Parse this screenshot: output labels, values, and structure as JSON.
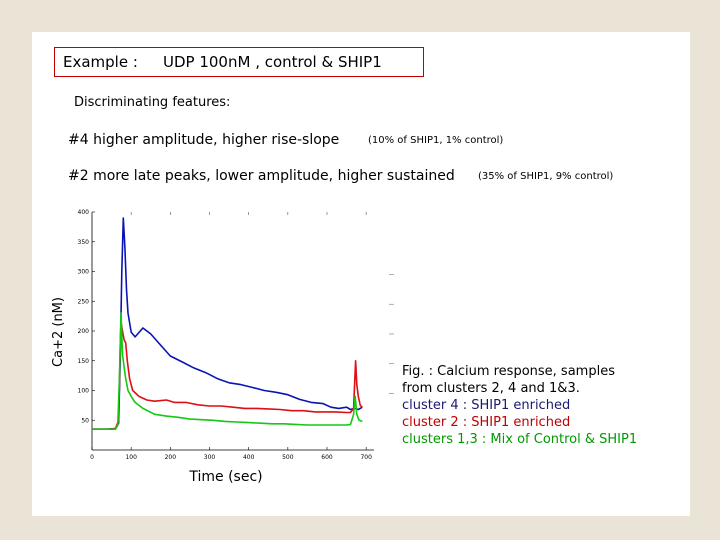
{
  "slide": {
    "example_label": "Example :",
    "example_value": "UDP 100nM , control & SHIP1",
    "features_heading": "Discriminating features:",
    "feature4_main": "#4 higher amplitude, higher rise-slope",
    "feature4_note": "(10% of SHIP1, 1% control)",
    "feature2_main": "#2 more late peaks, lower amplitude, higher sustained",
    "feature2_note": "(35% of SHIP1, 9% control)",
    "caption": {
      "line1": "Fig. : Calcium response, samples",
      "line2": "from clusters 2, 4 and 1&3.",
      "line3": "cluster 4 : SHIP1 enriched",
      "line4": "cluster 2  : SHIP1 enriched",
      "line5": "clusters 1,3 : Mix of Control & SHIP1"
    }
  },
  "colors": {
    "border": "#c00000",
    "cluster4": "#0a14b4",
    "cluster2": "#dc0f14",
    "clusters13": "#14c814",
    "caption_cluster4": "#1a1a6e",
    "caption_cluster2": "#c00000",
    "caption_clusters13": "#009a00"
  },
  "chart_data": {
    "type": "line",
    "xlabel": "Time (sec)",
    "ylabel": "Ca+2 (nM)",
    "xlim": [
      0,
      720
    ],
    "ylim": [
      0,
      400
    ],
    "x_ticks": [
      0,
      100,
      200,
      300,
      400,
      500,
      600,
      700
    ],
    "y_ticks": [
      50,
      100,
      150,
      200,
      250,
      300,
      350,
      400
    ],
    "series": [
      {
        "color": "#0a14b4",
        "points": [
          [
            0,
            35
          ],
          [
            40,
            35
          ],
          [
            60,
            36
          ],
          [
            68,
            45
          ],
          [
            72,
            150
          ],
          [
            76,
            300
          ],
          [
            80,
            390
          ],
          [
            84,
            340
          ],
          [
            88,
            270
          ],
          [
            92,
            230
          ],
          [
            100,
            198
          ],
          [
            110,
            190
          ],
          [
            130,
            205
          ],
          [
            150,
            195
          ],
          [
            170,
            180
          ],
          [
            200,
            158
          ],
          [
            230,
            148
          ],
          [
            260,
            138
          ],
          [
            290,
            130
          ],
          [
            320,
            120
          ],
          [
            350,
            113
          ],
          [
            380,
            110
          ],
          [
            410,
            105
          ],
          [
            440,
            100
          ],
          [
            470,
            97
          ],
          [
            500,
            93
          ],
          [
            530,
            85
          ],
          [
            560,
            80
          ],
          [
            590,
            78
          ],
          [
            610,
            72
          ],
          [
            630,
            70
          ],
          [
            650,
            72
          ],
          [
            660,
            68
          ],
          [
            670,
            70
          ],
          [
            680,
            68
          ],
          [
            690,
            72
          ]
        ]
      },
      {
        "color": "#dc0f14",
        "points": [
          [
            0,
            35
          ],
          [
            40,
            35
          ],
          [
            60,
            36
          ],
          [
            68,
            50
          ],
          [
            72,
            170
          ],
          [
            74,
            215
          ],
          [
            78,
            200
          ],
          [
            82,
            185
          ],
          [
            86,
            180
          ],
          [
            90,
            150
          ],
          [
            96,
            120
          ],
          [
            104,
            100
          ],
          [
            120,
            90
          ],
          [
            140,
            84
          ],
          [
            160,
            82
          ],
          [
            190,
            84
          ],
          [
            210,
            80
          ],
          [
            240,
            80
          ],
          [
            270,
            76
          ],
          [
            300,
            74
          ],
          [
            330,
            74
          ],
          [
            360,
            72
          ],
          [
            390,
            70
          ],
          [
            420,
            70
          ],
          [
            450,
            69
          ],
          [
            480,
            68
          ],
          [
            510,
            66
          ],
          [
            540,
            66
          ],
          [
            570,
            64
          ],
          [
            600,
            64
          ],
          [
            620,
            64
          ],
          [
            650,
            63
          ],
          [
            660,
            63
          ],
          [
            668,
            70
          ],
          [
            673,
            150
          ],
          [
            676,
            110
          ],
          [
            680,
            90
          ],
          [
            685,
            75
          ],
          [
            690,
            72
          ]
        ]
      },
      {
        "color": "#14c814",
        "points": [
          [
            0,
            35
          ],
          [
            40,
            35
          ],
          [
            60,
            35
          ],
          [
            66,
            42
          ],
          [
            70,
            120
          ],
          [
            74,
            230
          ],
          [
            78,
            160
          ],
          [
            82,
            140
          ],
          [
            86,
            120
          ],
          [
            92,
            100
          ],
          [
            100,
            90
          ],
          [
            110,
            80
          ],
          [
            130,
            70
          ],
          [
            160,
            60
          ],
          [
            190,
            57
          ],
          [
            220,
            55
          ],
          [
            250,
            52
          ],
          [
            280,
            51
          ],
          [
            310,
            50
          ],
          [
            340,
            48
          ],
          [
            370,
            47
          ],
          [
            400,
            46
          ],
          [
            430,
            45
          ],
          [
            460,
            44
          ],
          [
            490,
            44
          ],
          [
            520,
            43
          ],
          [
            550,
            42
          ],
          [
            580,
            42
          ],
          [
            610,
            42
          ],
          [
            630,
            42
          ],
          [
            650,
            42
          ],
          [
            660,
            43
          ],
          [
            668,
            60
          ],
          [
            672,
            90
          ],
          [
            676,
            60
          ],
          [
            682,
            50
          ],
          [
            690,
            48
          ]
        ]
      }
    ]
  }
}
